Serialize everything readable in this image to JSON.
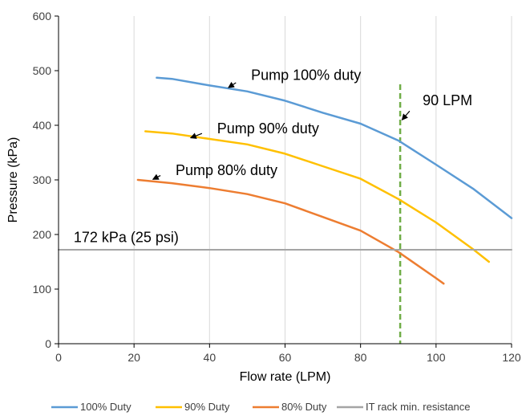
{
  "chart_data": {
    "type": "line",
    "title": "",
    "xlabel": "Flow rate (LPM)",
    "ylabel": "Pressure (kPa)",
    "xlim": [
      0,
      120
    ],
    "ylim": [
      0,
      600
    ],
    "x_ticks": [
      0,
      20,
      40,
      60,
      80,
      100,
      120
    ],
    "y_ticks": [
      0,
      100,
      200,
      300,
      400,
      500,
      600
    ],
    "grid": "vertical",
    "legend_position": "bottom",
    "series": [
      {
        "name": "100% Duty",
        "color": "#5b9bd5",
        "x": [
          26,
          30,
          40,
          50,
          60,
          70,
          80,
          90,
          100,
          110,
          120
        ],
        "y": [
          487,
          485,
          473,
          462,
          445,
          423,
          403,
          372,
          328,
          283,
          230
        ]
      },
      {
        "name": "90% Duty",
        "color": "#ffc000",
        "x": [
          23,
          30,
          40,
          50,
          60,
          70,
          80,
          90,
          100,
          110,
          114
        ],
        "y": [
          389,
          385,
          375,
          365,
          348,
          325,
          302,
          265,
          222,
          172,
          150
        ]
      },
      {
        "name": "80% Duty",
        "color": "#ed7d31",
        "x": [
          21,
          30,
          40,
          50,
          60,
          70,
          80,
          90,
          100,
          102
        ],
        "y": [
          300,
          294,
          285,
          274,
          257,
          232,
          207,
          168,
          120,
          110
        ]
      },
      {
        "name": "IT rack min. resistance",
        "color": "#a5a5a5",
        "x": [
          0,
          120
        ],
        "y": [
          172,
          172
        ]
      }
    ],
    "vertical_marker": {
      "x": 90.5,
      "color": "#70ad47",
      "label": "90 LPM"
    },
    "annotations": [
      {
        "text": "Pump 100% duty",
        "text_x": 51,
        "text_y": 483,
        "arrow_from": [
          47,
          478
        ],
        "arrow_to": [
          45,
          469
        ]
      },
      {
        "text": "Pump 90% duty",
        "text_x": 42,
        "text_y": 385,
        "arrow_from": [
          38,
          385
        ],
        "arrow_to": [
          35,
          377
        ]
      },
      {
        "text": "Pump 80% duty",
        "text_x": 31,
        "text_y": 309,
        "arrow_from": [
          27,
          308
        ],
        "arrow_to": [
          25,
          301
        ]
      },
      {
        "text": "172 kPa (25 psi)",
        "text_x": 4,
        "text_y": 186
      },
      {
        "text": "",
        "text_x": 0,
        "text_y": 0,
        "arrow_from": [
          93,
          426
        ],
        "arrow_to": [
          91,
          410
        ]
      }
    ]
  }
}
